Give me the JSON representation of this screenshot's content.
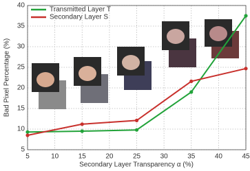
{
  "chart_data": {
    "type": "line",
    "x_label": "Secondary Layer Transparency α (%)",
    "y_label": "Bad Pixel Percentage  (%)",
    "x": [
      5,
      15,
      25,
      35,
      45
    ],
    "series": [
      {
        "name": "Transmitted Layer T",
        "color": "#22a33a",
        "values": [
          9.3,
          9.5,
          9.8,
          19,
          37.5
        ]
      },
      {
        "name": "Secondary Layer S",
        "color": "#c8302c",
        "values": [
          8.5,
          11.2,
          12.1,
          21.6,
          24.7
        ]
      }
    ],
    "xlim": [
      5,
      45
    ],
    "xticks": [
      5,
      10,
      15,
      20,
      25,
      30,
      35,
      40,
      45
    ],
    "ylim": [
      5,
      40
    ],
    "yticks": [
      5,
      10,
      15,
      20,
      25,
      30,
      35,
      40
    ],
    "grid": true,
    "legend": "upper left"
  }
}
